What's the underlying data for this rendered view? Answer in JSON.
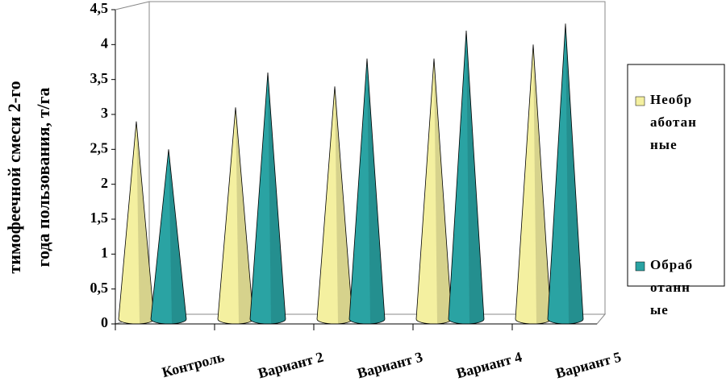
{
  "chart_data": {
    "type": "cone3d",
    "ylabel": [
      "тимофеечной смеси 2-го",
      "года пользования, т/га"
    ],
    "categories": [
      "Контроль",
      "Вариант 2",
      "Вариант 3",
      "Вариант 4",
      "Вариант 5"
    ],
    "series": [
      {
        "name": "Необработанные",
        "color": "#f4f0a0",
        "values": [
          2.9,
          3.1,
          3.4,
          3.8,
          4.0
        ]
      },
      {
        "name": "Обработанные",
        "color": "#2aa3a3",
        "values": [
          2.5,
          3.6,
          3.8,
          4.2,
          4.3
        ]
      }
    ],
    "ylim": [
      0,
      4.5
    ],
    "yticks": [
      0,
      {
        "value": 0.5,
        "label": "0,5"
      },
      1,
      {
        "value": 1.5,
        "label": "1,5"
      },
      2,
      {
        "value": 2.5,
        "label": "2,5"
      },
      3,
      {
        "value": 3.5,
        "label": "3,5"
      },
      4,
      {
        "value": 4.5,
        "label": "4,5"
      }
    ]
  }
}
